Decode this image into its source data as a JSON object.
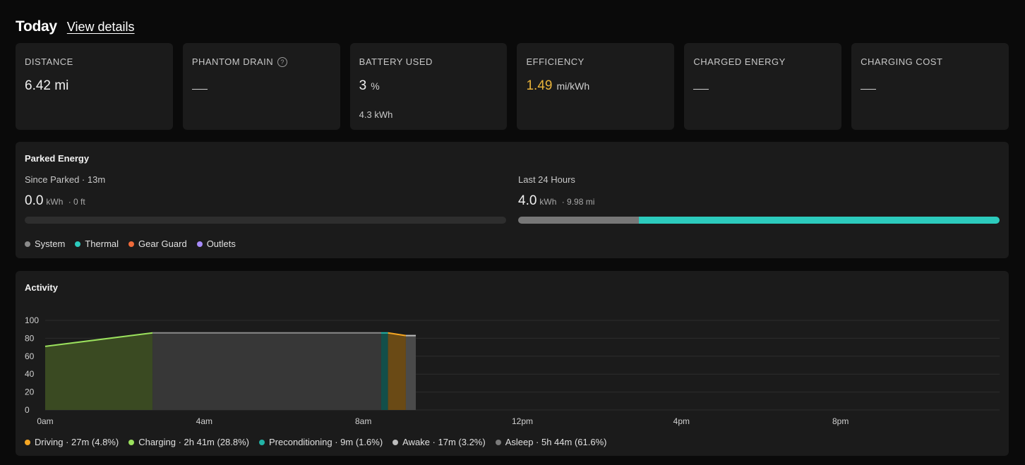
{
  "header": {
    "title": "Today",
    "view_details": "View details"
  },
  "stats": {
    "distance": {
      "label": "DISTANCE",
      "value": "6.42 mi"
    },
    "phantom_drain": {
      "label": "PHANTOM DRAIN",
      "help_icon": "question-circle-icon"
    },
    "battery_used": {
      "label": "BATTERY USED",
      "value": "3",
      "unit": "%",
      "sub": "4.3 kWh"
    },
    "efficiency": {
      "label": "EFFICIENCY",
      "value": "1.49",
      "unit": "mi/kWh",
      "color": "#e8b33a"
    },
    "charged_energy": {
      "label": "CHARGED ENERGY"
    },
    "charging_cost": {
      "label": "CHARGING COST"
    }
  },
  "parked": {
    "title": "Parked Energy",
    "since": {
      "caption": "Since Parked · 13m",
      "value": "0.0",
      "unit": "kWh",
      "meta": "· 0 ft",
      "system_fraction": 0,
      "thermal_fraction": 0
    },
    "last24": {
      "caption": "Last 24 Hours",
      "value": "4.0",
      "unit": "kWh",
      "meta": "· 9.98 mi",
      "system_fraction": 0.25,
      "thermal_fraction": 0.75
    },
    "legend": [
      {
        "label": "System",
        "color": "#8a8a8a"
      },
      {
        "label": "Thermal",
        "color": "#2ccbbd"
      },
      {
        "label": "Gear Guard",
        "color": "#ef6a3a"
      },
      {
        "label": "Outlets",
        "color": "#a78bfa"
      }
    ]
  },
  "activity": {
    "title": "Activity",
    "legend": [
      {
        "label": "Driving · 27m (4.8%)",
        "color": "#f5a623"
      },
      {
        "label": "Charging · 2h 41m (28.8%)",
        "color": "#9be15d"
      },
      {
        "label": "Preconditioning · 9m (1.6%)",
        "color": "#22b3a6"
      },
      {
        "label": "Awake · 17m (3.2%)",
        "color": "#bdbdbd"
      },
      {
        "label": "Asleep · 5h 44m (61.6%)",
        "color": "#7a7a7a"
      }
    ]
  },
  "chart_data": {
    "type": "area",
    "y_ticks": [
      "100",
      "80",
      "60",
      "40",
      "20",
      "0"
    ],
    "x_ticks": [
      "0am",
      "4am",
      "8am",
      "12pm",
      "4pm",
      "8pm"
    ],
    "xlim_hours": [
      0,
      24
    ],
    "ylim": [
      0,
      100
    ],
    "grid": true,
    "segments": [
      {
        "state": "charging",
        "start": 0.0,
        "end": 2.7,
        "y_start": 71,
        "y_end": 86,
        "color": "#9be15d",
        "fill": "#3a4a22"
      },
      {
        "state": "asleep",
        "start": 2.7,
        "end": 8.45,
        "y_start": 86,
        "y_end": 86,
        "color": "#8a8a8a",
        "fill": "#373737"
      },
      {
        "state": "preconditioning",
        "start": 8.45,
        "end": 8.62,
        "y_start": 86,
        "y_end": 86,
        "color": "#22b3a6",
        "fill": "#134f4a"
      },
      {
        "state": "driving",
        "start": 8.62,
        "end": 9.07,
        "y_start": 86,
        "y_end": 83,
        "color": "#f5a623",
        "fill": "#6a4a15"
      },
      {
        "state": "awake",
        "start": 9.07,
        "end": 9.32,
        "y_start": 83,
        "y_end": 83,
        "color": "#bdbdbd",
        "fill": "#4a4a4a"
      }
    ]
  }
}
